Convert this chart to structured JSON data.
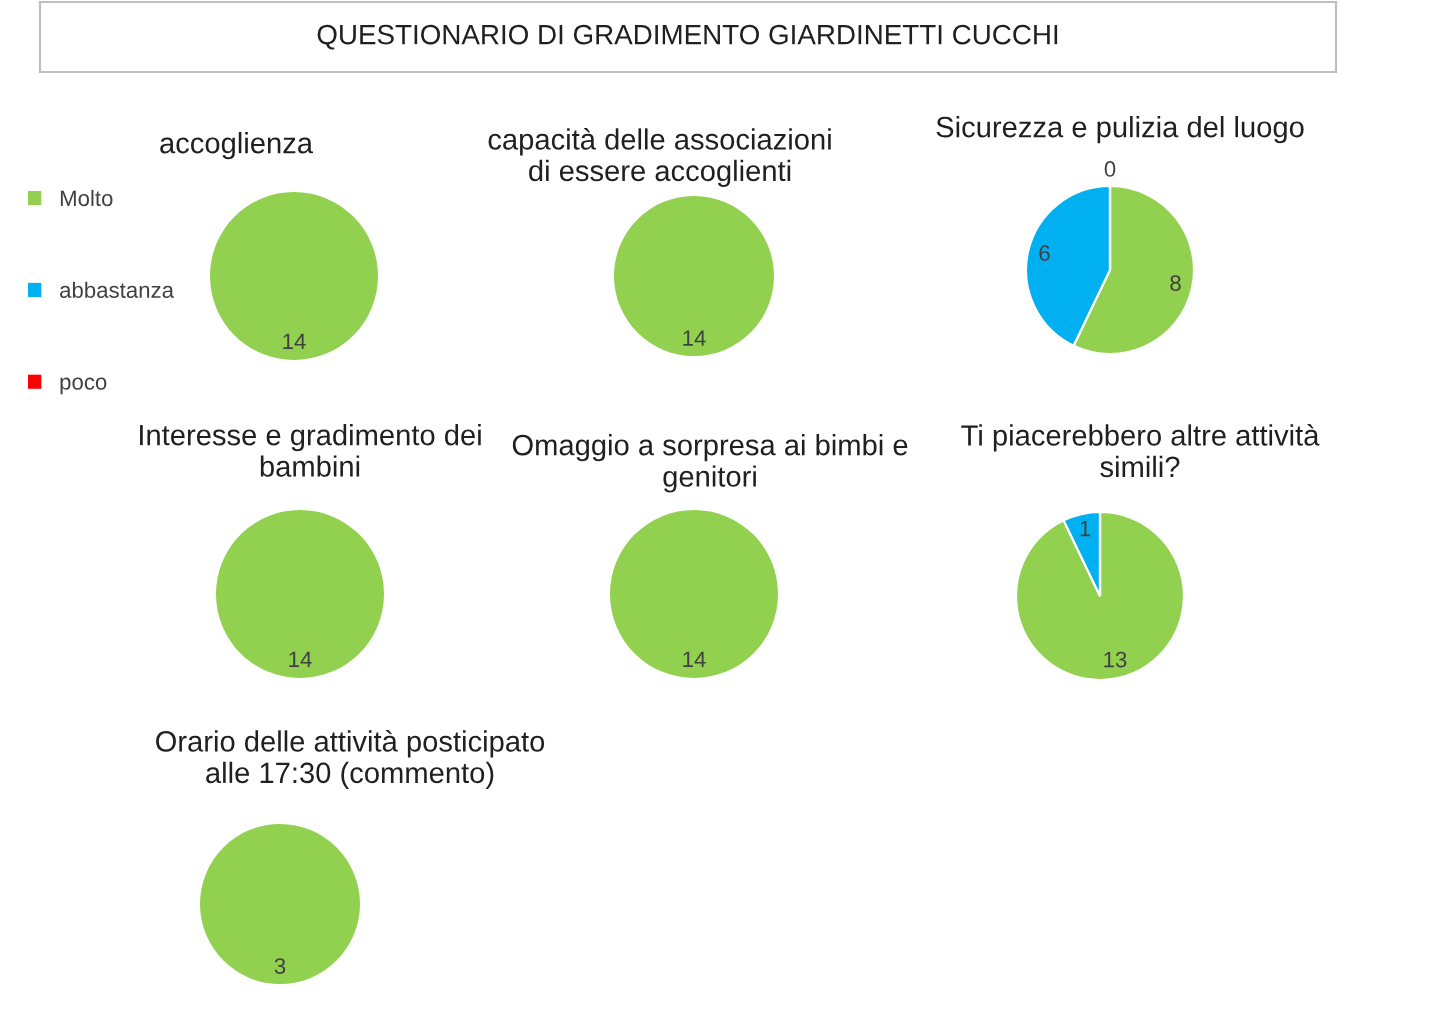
{
  "chart_data": [
    {
      "type": "other",
      "title": "QUESTIONARIO DI GRADIMENTO GIARDINETTI CUCCHI"
    },
    {
      "type": "pie",
      "title": "accoglienza",
      "categories": [
        "Molto",
        "abbastanza",
        "poco"
      ],
      "values": [
        14,
        0,
        0
      ],
      "colors": [
        "#92d050",
        "#00b0f0",
        "#ff0000"
      ],
      "value_labels": [
        "14",
        null,
        null
      ],
      "legend": "left"
    },
    {
      "type": "pie",
      "title": "capacità delle associazioni\ndi essere accoglienti",
      "values": [
        14,
        0,
        0
      ],
      "colors": [
        "#92d050",
        "#00b0f0",
        "#ff0000"
      ],
      "value_labels": [
        "14",
        null,
        null
      ]
    },
    {
      "type": "pie",
      "title": "Sicurezza e pulizia del luogo",
      "values": [
        8,
        6,
        0
      ],
      "colors": [
        "#92d050",
        "#00b0f0",
        "#ff0000"
      ],
      "value_labels": [
        "8",
        "6",
        "0"
      ]
    },
    {
      "type": "pie",
      "title": "Interesse e gradimento dei\nbambini",
      "values": [
        14,
        0,
        0
      ],
      "colors": [
        "#92d050",
        "#00b0f0",
        "#ff0000"
      ],
      "value_labels": [
        "14",
        null,
        null
      ]
    },
    {
      "type": "pie",
      "title": "Omaggio a sorpresa ai bimbi e\ngenitori",
      "values": [
        14,
        0,
        0
      ],
      "colors": [
        "#92d050",
        "#00b0f0",
        "#ff0000"
      ],
      "value_labels": [
        "14",
        null,
        null
      ]
    },
    {
      "type": "pie",
      "title": "Ti piacerebbero altre attività\nsimili?",
      "values": [
        13,
        1,
        0
      ],
      "colors": [
        "#92d050",
        "#00b0f0",
        "#ff0000"
      ],
      "value_labels": [
        "13",
        "1",
        null
      ]
    },
    {
      "type": "pie",
      "title": "Orario delle attività posticipato\nalle 17:30 (commento)",
      "values": [
        3,
        0,
        0
      ],
      "colors": [
        "#92d050",
        "#00b0f0",
        "#ff0000"
      ],
      "value_labels": [
        "3",
        null,
        null
      ]
    }
  ]
}
